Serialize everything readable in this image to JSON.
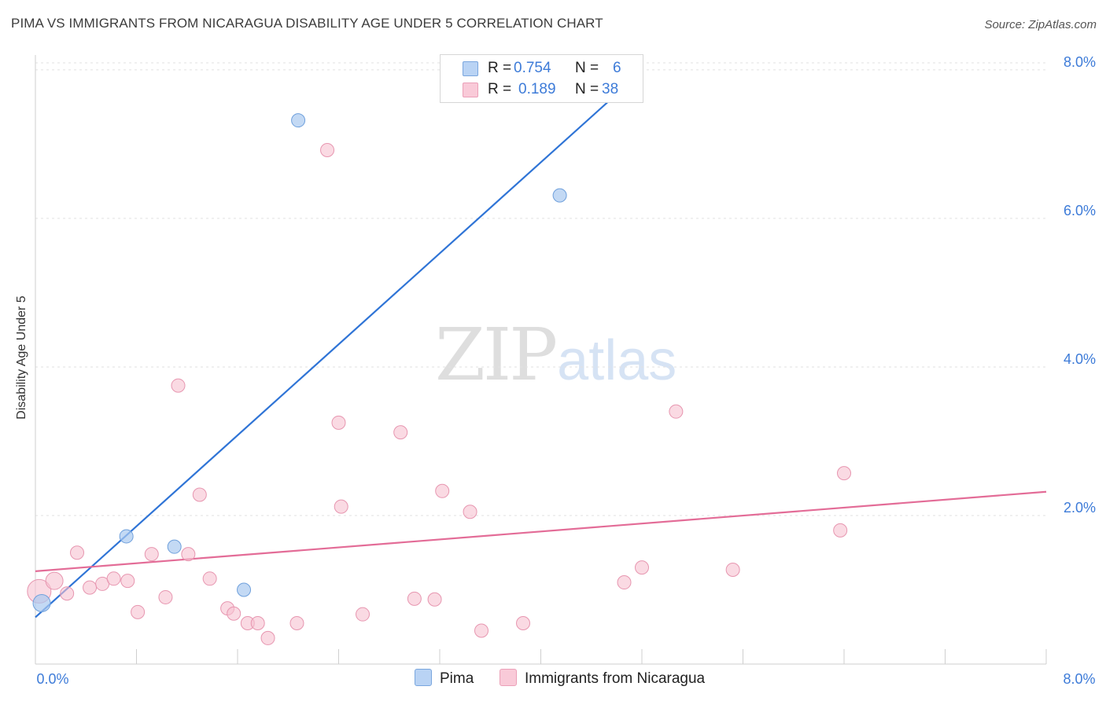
{
  "header": {
    "title": "PIMA VS IMMIGRANTS FROM NICARAGUA DISABILITY AGE UNDER 5 CORRELATION CHART",
    "source": "Source: ZipAtlas.com"
  },
  "watermark": {
    "zip": "ZIP",
    "atlas": "atlas"
  },
  "legend": {
    "rows": [
      {
        "r_label": "R =",
        "r_value": "0.754",
        "n_label": "N =",
        "n_value": "6"
      },
      {
        "r_label": "R =",
        "r_value": "0.189",
        "n_label": "N =",
        "n_value": "38"
      }
    ]
  },
  "bottom_legend": {
    "series_a": "Pima",
    "series_b": "Immigrants from Nicaragua"
  },
  "colors": {
    "pima_fill": "#a9c9f0",
    "pima_stroke": "#6fa0dc",
    "pima_line": "#2f74d6",
    "nic_fill": "#f7c1d0",
    "nic_stroke": "#e796b0",
    "nic_line": "#e36c97",
    "tick_label": "#3d7bd8",
    "grid": "#e2e2e2"
  },
  "chart_data": {
    "type": "scatter",
    "title": "PIMA VS IMMIGRANTS FROM NICARAGUA DISABILITY AGE UNDER 5 CORRELATION CHART",
    "xlabel": "",
    "ylabel": "Disability Age Under 5",
    "xlim": [
      0,
      8
    ],
    "ylim": [
      0,
      8.2
    ],
    "x_tick_labels": [
      "0.0%",
      "8.0%"
    ],
    "y_ticks": [
      2,
      4,
      6,
      8
    ],
    "y_tick_labels": [
      "2.0%",
      "4.0%",
      "6.0%",
      "8.0%"
    ],
    "grid": true,
    "legend_position": "top-center",
    "series": [
      {
        "name": "Pima",
        "r": 0.754,
        "n": 6,
        "points": [
          {
            "x": 0.05,
            "y": 0.82
          },
          {
            "x": 0.72,
            "y": 1.72
          },
          {
            "x": 1.1,
            "y": 1.58
          },
          {
            "x": 1.65,
            "y": 1.0
          },
          {
            "x": 2.08,
            "y": 7.32
          },
          {
            "x": 4.15,
            "y": 6.31
          }
        ],
        "trend": {
          "x0": 0.0,
          "y0": 0.63,
          "x1": 4.8,
          "y1": 7.98
        }
      },
      {
        "name": "Immigrants from Nicaragua",
        "r": 0.189,
        "n": 38,
        "points": [
          {
            "x": 0.03,
            "y": 0.98
          },
          {
            "x": 0.15,
            "y": 1.12
          },
          {
            "x": 0.25,
            "y": 0.95
          },
          {
            "x": 0.33,
            "y": 1.5
          },
          {
            "x": 0.43,
            "y": 1.03
          },
          {
            "x": 0.53,
            "y": 1.08
          },
          {
            "x": 0.62,
            "y": 1.15
          },
          {
            "x": 0.73,
            "y": 1.12
          },
          {
            "x": 0.81,
            "y": 0.7
          },
          {
            "x": 0.92,
            "y": 1.48
          },
          {
            "x": 1.03,
            "y": 0.9
          },
          {
            "x": 1.13,
            "y": 3.75
          },
          {
            "x": 1.21,
            "y": 1.48
          },
          {
            "x": 1.3,
            "y": 2.28
          },
          {
            "x": 1.38,
            "y": 1.15
          },
          {
            "x": 1.52,
            "y": 0.75
          },
          {
            "x": 1.57,
            "y": 0.68
          },
          {
            "x": 1.68,
            "y": 0.55
          },
          {
            "x": 1.76,
            "y": 0.55
          },
          {
            "x": 1.84,
            "y": 0.35
          },
          {
            "x": 2.07,
            "y": 0.55
          },
          {
            "x": 2.31,
            "y": 6.92
          },
          {
            "x": 2.4,
            "y": 3.25
          },
          {
            "x": 2.42,
            "y": 2.12
          },
          {
            "x": 2.59,
            "y": 0.67
          },
          {
            "x": 2.89,
            "y": 3.12
          },
          {
            "x": 3.0,
            "y": 0.88
          },
          {
            "x": 3.16,
            "y": 0.87
          },
          {
            "x": 3.22,
            "y": 2.33
          },
          {
            "x": 3.44,
            "y": 2.05
          },
          {
            "x": 3.53,
            "y": 0.45
          },
          {
            "x": 3.86,
            "y": 0.55
          },
          {
            "x": 4.66,
            "y": 1.1
          },
          {
            "x": 4.8,
            "y": 1.3
          },
          {
            "x": 5.07,
            "y": 3.4
          },
          {
            "x": 5.52,
            "y": 1.27
          },
          {
            "x": 6.37,
            "y": 1.8
          },
          {
            "x": 6.4,
            "y": 2.57
          }
        ],
        "trend": {
          "x0": 0.0,
          "y0": 1.25,
          "x1": 8.0,
          "y1": 2.32
        }
      }
    ]
  }
}
